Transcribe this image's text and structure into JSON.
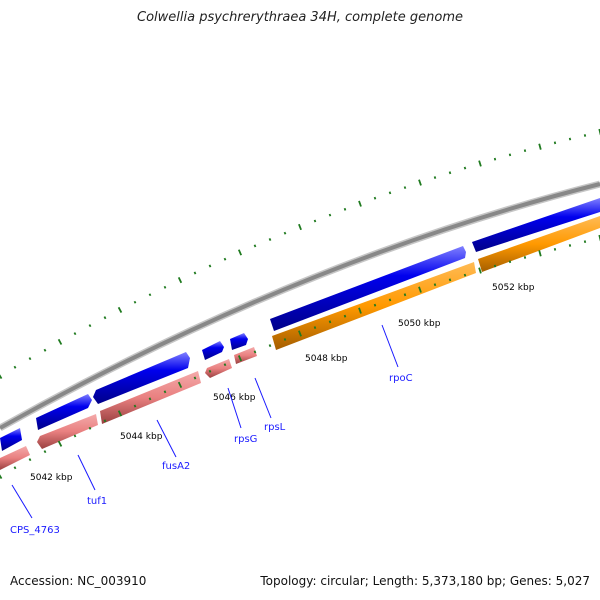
{
  "title": "Colwellia psychrerythraea 34H, complete genome",
  "footer": {
    "accession": "Accession: NC_003910",
    "summary": "Topology: circular; Length: 5,373,180 bp; Genes: 5,027"
  },
  "colors": {
    "backbone": "#8c8c8c",
    "forward_gene": "#0000ee",
    "reverse_gene": "#ef8080",
    "rpoC_gene": "#ff9900",
    "scale_ticks": "#1f7a1f",
    "gene_label": "#1a1aff"
  },
  "scale_labels": [
    "5042 kbp",
    "5044 kbp",
    "5046 kbp",
    "5048 kbp",
    "5050 kbp",
    "5052 kbp"
  ],
  "gene_labels": [
    "CPS_4763",
    "tuf1",
    "fusA2",
    "rpsG",
    "rpsL",
    "rpoC"
  ]
}
